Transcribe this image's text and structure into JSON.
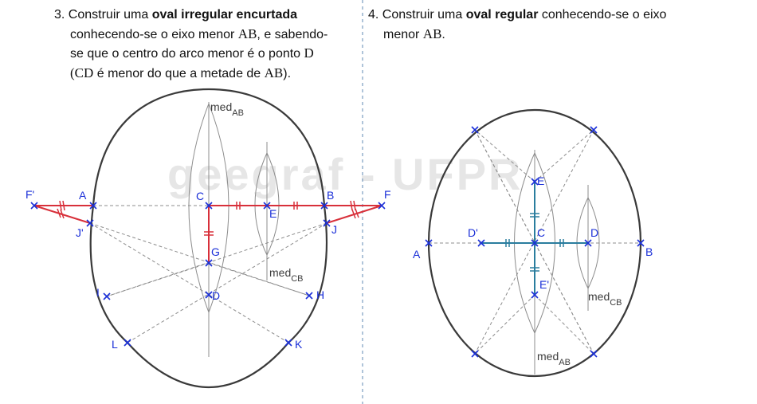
{
  "instruction_3": {
    "number": "3.",
    "prefix": "Construir uma ",
    "bold": "oval irregular encurtada",
    "line2_a": "conhecendo-se o eixo menor ",
    "line2_m": "AB",
    "line2_b": ", e sabendo-",
    "line3_a": "se que o centro do arco menor é o ponto ",
    "line3_m": "D",
    "line4_m1": "(CD",
    "line4_a": " é menor do que a metade de ",
    "line4_m2": "AB",
    "line4_b": ")."
  },
  "instruction_4": {
    "number": "4.",
    "prefix": "Construir uma ",
    "bold": "oval regular",
    "suffix": " conhecendo-se o eixo",
    "line2_a": "menor ",
    "line2_m": "AB",
    "line2_b": "."
  },
  "watermark": "geegraf - UFPR",
  "diagram_left": {
    "points": {
      "F_prime": "F'",
      "A": "A",
      "J_prime": "J'",
      "C": "C",
      "E": "E",
      "B": "B",
      "F": "F",
      "J": "J",
      "G": "G",
      "I": "I",
      "D": "D",
      "H": "H",
      "L": "L",
      "K": "K"
    },
    "med_ab": {
      "main": "med",
      "sub": "AB"
    },
    "med_cb": {
      "main": "med",
      "sub": "CB"
    }
  },
  "diagram_right": {
    "points": {
      "A": "A",
      "D_prime": "D'",
      "C": "C",
      "D": "D",
      "B": "B",
      "E": "E",
      "E_prime": "E'"
    },
    "med_ab": {
      "main": "med",
      "sub": "AB"
    },
    "med_cb": {
      "main": "med",
      "sub": "CB"
    }
  },
  "colors": {
    "curve": "#3a3a3a",
    "construction": "#8c8c8c",
    "point": "#1a2fd8",
    "left_segment": "#d8303a",
    "right_segment": "#2a7d9e",
    "divider": "#7a9cc0"
  }
}
